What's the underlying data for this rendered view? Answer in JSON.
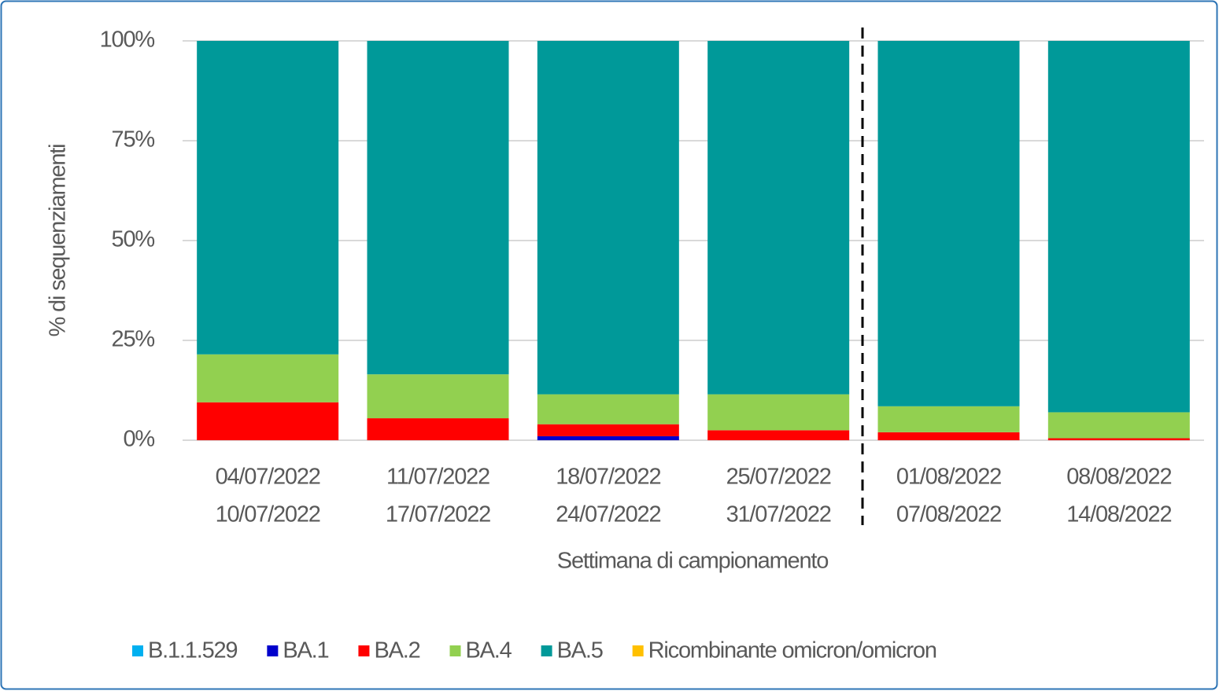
{
  "chart_data": {
    "type": "stacked-bar",
    "x_label": "Settimana di campionamento",
    "y_label": "% di sequenziamenti",
    "categories": [
      [
        "04/07/2022",
        "10/07/2022"
      ],
      [
        "11/07/2022",
        "17/07/2022"
      ],
      [
        "18/07/2022",
        "24/07/2022"
      ],
      [
        "25/07/2022",
        "31/07/2022"
      ],
      [
        "01/08/2022",
        "07/08/2022"
      ],
      [
        "08/08/2022",
        "14/08/2022"
      ]
    ],
    "series": [
      {
        "name": "B.1.1.529",
        "color": "#00b0f0",
        "values": [
          0,
          0,
          0,
          0,
          0,
          0
        ]
      },
      {
        "name": "BA.1",
        "color": "#0000cc",
        "values": [
          0,
          0,
          1,
          0,
          0,
          0
        ]
      },
      {
        "name": "BA.2",
        "color": "#ff0000",
        "values": [
          9.5,
          5.5,
          3,
          2.5,
          2,
          0.5
        ]
      },
      {
        "name": "BA.4",
        "color": "#92d050",
        "values": [
          12,
          11,
          7.5,
          9,
          6.5,
          6.5
        ]
      },
      {
        "name": "BA.5",
        "color": "#009999",
        "values": [
          78.5,
          83.5,
          88.5,
          88.5,
          91.5,
          93
        ]
      },
      {
        "name": "Ricombinante omicron/omicron",
        "color": "#ffc000",
        "values": [
          0,
          0,
          0,
          0,
          0,
          0
        ]
      }
    ],
    "ylim": [
      0,
      100
    ],
    "yticks": [
      {
        "value": 0,
        "label": "0%"
      },
      {
        "value": 25,
        "label": "25%"
      },
      {
        "value": 50,
        "label": "50%"
      },
      {
        "value": 75,
        "label": "75%"
      },
      {
        "value": 100,
        "label": "100%"
      }
    ],
    "grid": true,
    "legend": "bottom"
  }
}
